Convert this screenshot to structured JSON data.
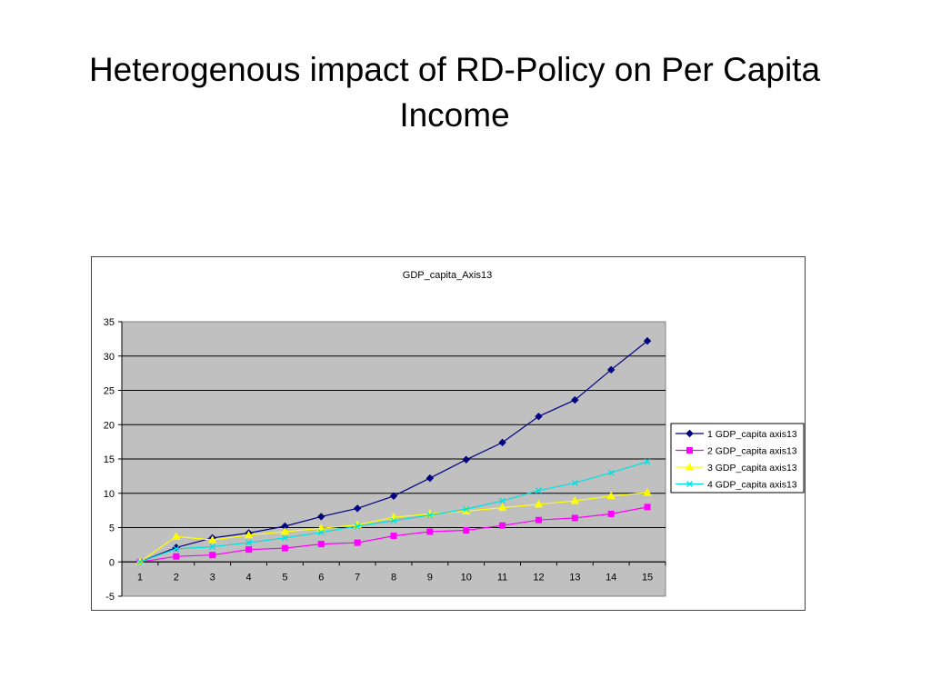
{
  "slide": {
    "title_line1": "Heterogenous impact of RD-Policy on Per Capita",
    "title_line2": "Income"
  },
  "chart_data": {
    "type": "line",
    "title": "GDP_capita_Axis13",
    "xlabel": "",
    "ylabel": "",
    "categories": [
      "1",
      "2",
      "3",
      "4",
      "5",
      "6",
      "7",
      "8",
      "9",
      "10",
      "11",
      "12",
      "13",
      "14",
      "15"
    ],
    "ylim": [
      -5,
      35
    ],
    "yticks": [
      35,
      30,
      25,
      20,
      15,
      10,
      5,
      0,
      -5
    ],
    "grid": true,
    "plot_background": "#c0c0c0",
    "legend_position": "right",
    "series": [
      {
        "name": "1 GDP_capita axis13",
        "color": "#000080",
        "marker": "diamond",
        "values": [
          0,
          2.1,
          3.5,
          4.2,
          5.2,
          6.6,
          7.8,
          9.6,
          12.2,
          14.9,
          17.4,
          21.2,
          23.6,
          28.0,
          32.2
        ]
      },
      {
        "name": "2 GDP_capita axis13",
        "color": "#ff00ff",
        "marker": "square",
        "values": [
          0,
          0.8,
          1.0,
          1.8,
          2.0,
          2.6,
          2.8,
          3.8,
          4.4,
          4.6,
          5.3,
          6.1,
          6.4,
          7.0,
          8.0
        ]
      },
      {
        "name": "3 GDP_capita axis13",
        "color": "#ffff00",
        "marker": "triangle",
        "values": [
          0,
          3.7,
          3.2,
          3.9,
          4.4,
          4.9,
          5.4,
          6.5,
          7.0,
          7.4,
          7.9,
          8.4,
          8.9,
          9.6,
          10.1
        ]
      },
      {
        "name": "4 GDP_capita axis13",
        "color": "#00e0e0",
        "marker": "x",
        "values": [
          0,
          1.9,
          2.2,
          2.8,
          3.5,
          4.3,
          5.2,
          6.0,
          6.8,
          7.7,
          8.9,
          10.4,
          11.5,
          13.0,
          14.6
        ]
      }
    ]
  }
}
